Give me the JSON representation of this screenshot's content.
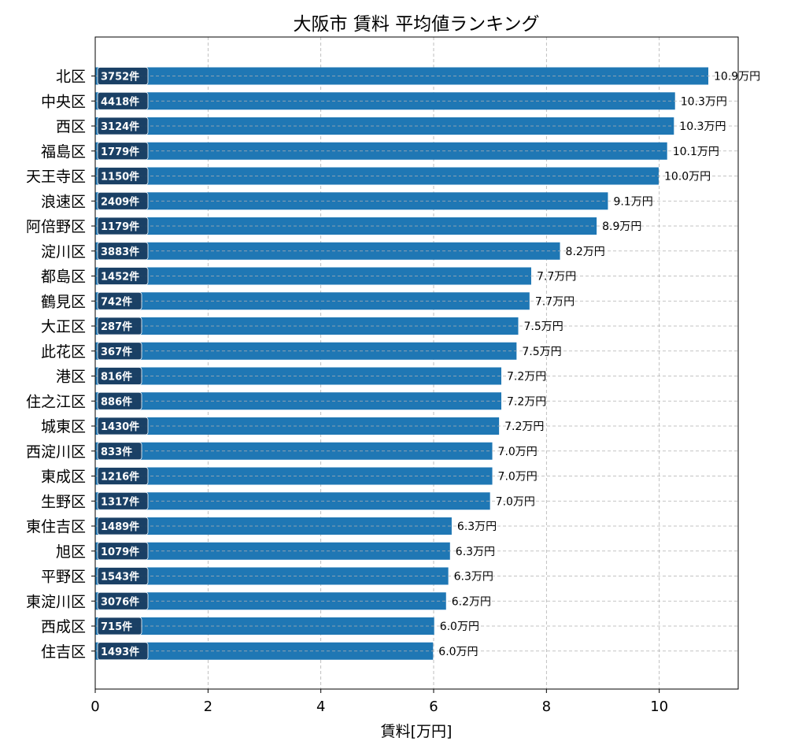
{
  "chart_data": {
    "type": "bar",
    "orientation": "horizontal",
    "title": "大阪市 賃料 平均値ランキング",
    "xlabel": "賃料[万円]",
    "ylabel": "",
    "xlim": [
      0,
      11.4
    ],
    "xticks": [
      0,
      2,
      4,
      6,
      8,
      10
    ],
    "xtick_labels": [
      "0",
      "2",
      "4",
      "6",
      "8",
      "10"
    ],
    "grid": true,
    "bar_color": "#1f77b4",
    "count_box_color": "#1a3a5c",
    "categories": [
      "北区",
      "中央区",
      "西区",
      "福島区",
      "天王寺区",
      "浪速区",
      "阿倍野区",
      "淀川区",
      "都島区",
      "鶴見区",
      "大正区",
      "此花区",
      "港区",
      "住之江区",
      "城東区",
      "西淀川区",
      "東成区",
      "生野区",
      "東住吉区",
      "旭区",
      "平野区",
      "東淀川区",
      "西成区",
      "住吉区"
    ],
    "values": [
      10.87,
      10.28,
      10.26,
      10.14,
      9.99,
      9.09,
      8.89,
      8.24,
      7.73,
      7.7,
      7.5,
      7.47,
      7.2,
      7.2,
      7.16,
      7.04,
      7.04,
      7.0,
      6.32,
      6.29,
      6.26,
      6.22,
      6.01,
      5.99
    ],
    "value_labels": [
      "10.9万円",
      "10.3万円",
      "10.3万円",
      "10.1万円",
      "10.0万円",
      "9.1万円",
      "8.9万円",
      "8.2万円",
      "7.7万円",
      "7.7万円",
      "7.5万円",
      "7.5万円",
      "7.2万円",
      "7.2万円",
      "7.2万円",
      "7.0万円",
      "7.0万円",
      "7.0万円",
      "6.3万円",
      "6.3万円",
      "6.3万円",
      "6.2万円",
      "6.0万円",
      "6.0万円"
    ],
    "count_labels": [
      "3752件",
      "4418件",
      "3124件",
      "1779件",
      "1150件",
      "2409件",
      "1179件",
      "3883件",
      "1452件",
      "742件",
      "287件",
      "367件",
      "816件",
      "886件",
      "1430件",
      "833件",
      "1216件",
      "1317件",
      "1489件",
      "1079件",
      "1543件",
      "3076件",
      "715件",
      "1493件"
    ]
  }
}
